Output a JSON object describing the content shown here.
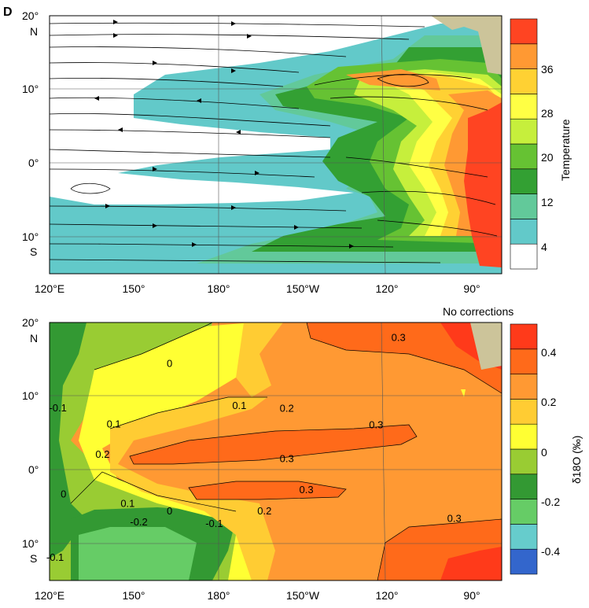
{
  "panel_letter": "D",
  "colors": {
    "temperature": [
      "#ffffff",
      "#62c9c9",
      "#62c99a",
      "#33a033",
      "#66c233",
      "#c6ef3c",
      "#ffff44",
      "#ffd133",
      "#ff9933",
      "#ff4422"
    ],
    "d18o": [
      "#3366cc",
      "#66cccc",
      "#66cc66",
      "#339933",
      "#99cc33",
      "#ffff33",
      "#ffcc33",
      "#ff9933",
      "#ff6a1a",
      "#ff3a1a"
    ],
    "land": "#ccc49a"
  },
  "chart_data": [
    {
      "type": "heatmap",
      "title": "",
      "xlabel": "",
      "ylabel": "",
      "x_ticks": [
        "120°E",
        "150°",
        "180°",
        "150°W",
        "120°",
        "90°"
      ],
      "y_ticks": [
        "20°",
        "N",
        "10°",
        "0°",
        "10°",
        "S"
      ],
      "xlim": [
        120,
        282
      ],
      "ylim": [
        -15,
        20
      ],
      "grid": true,
      "overlay": "streamlines",
      "colorbar": {
        "label": "Temperature",
        "tick_labels": [
          "36",
          "28",
          "20",
          "12",
          "4"
        ],
        "levels": [
          0,
          4,
          8,
          12,
          16,
          20,
          24,
          28,
          32,
          36,
          40
        ]
      },
      "contour_fill_levels": [
        {
          "level": 4,
          "region": "outer band"
        },
        {
          "level": 12,
          "region": "north and south bands"
        },
        {
          "level": 36,
          "region": "eastern Pacific"
        }
      ]
    },
    {
      "type": "heatmap",
      "title": "",
      "annotation": "No corrections",
      "xlabel": "",
      "ylabel": "",
      "x_ticks": [
        "120°E",
        "150°",
        "180°",
        "150°W",
        "120°",
        "90°"
      ],
      "y_ticks": [
        "20°",
        "N",
        "10°",
        "0°",
        "10°",
        "S"
      ],
      "xlim": [
        120,
        282
      ],
      "ylim": [
        -15,
        20
      ],
      "grid": true,
      "colorbar": {
        "label": "δ18O (‰)",
        "tick_labels": [
          "0.4",
          "0.2",
          "0",
          "-0.2",
          "-0.4"
        ],
        "levels": [
          -0.5,
          -0.4,
          -0.3,
          -0.2,
          -0.1,
          0,
          0.1,
          0.2,
          0.3,
          0.4,
          0.5
        ]
      },
      "contour_labels": [
        {
          "text": "0.3",
          "lon": 245,
          "lat": 18
        },
        {
          "text": "0",
          "lon": 163,
          "lat": 14.5
        },
        {
          "text": "-0.1",
          "lon": 123,
          "lat": 8.5
        },
        {
          "text": "0.1",
          "lon": 188,
          "lat": 8.8
        },
        {
          "text": "0.2",
          "lon": 205,
          "lat": 8.4
        },
        {
          "text": "0.1",
          "lon": 143,
          "lat": 6.3
        },
        {
          "text": "0.3",
          "lon": 237,
          "lat": 6.2
        },
        {
          "text": "0.2",
          "lon": 139,
          "lat": 2.2
        },
        {
          "text": "0.3",
          "lon": 205,
          "lat": 1.6
        },
        {
          "text": "0",
          "lon": 125,
          "lat": -3.2
        },
        {
          "text": "0.3",
          "lon": 212,
          "lat": -2.6
        },
        {
          "text": "0.1",
          "lon": 148,
          "lat": -4.5
        },
        {
          "text": "0",
          "lon": 163,
          "lat": -5.5
        },
        {
          "text": "0.2",
          "lon": 197,
          "lat": -5.5
        },
        {
          "text": "-0.2",
          "lon": 152,
          "lat": -7.0
        },
        {
          "text": "-0.1",
          "lon": 179,
          "lat": -7.2
        },
        {
          "text": "0.3",
          "lon": 265,
          "lat": -6.5
        },
        {
          "text": "-0.1",
          "lon": 122,
          "lat": -11.8
        }
      ]
    }
  ]
}
